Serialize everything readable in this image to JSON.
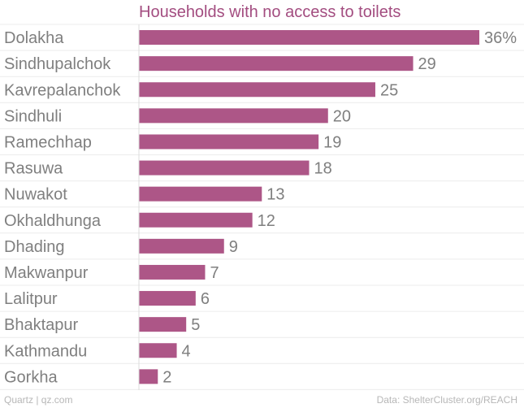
{
  "chart_data": {
    "type": "bar",
    "orientation": "horizontal",
    "title": "Households with no access to toilets",
    "categories": [
      "Dolakha",
      "Sindhupalchok",
      "Kavrepalanchok",
      "Sindhuli",
      "Ramechhap",
      "Rasuwa",
      "Nuwakot",
      "Okhaldhunga",
      "Dhading",
      "Makwanpur",
      "Lalitpur",
      "Bhaktapur",
      "Kathmandu",
      "Gorkha"
    ],
    "values": [
      36,
      29,
      25,
      20,
      19,
      18,
      13,
      12,
      9,
      7,
      6,
      5,
      4,
      2
    ],
    "value_labels": [
      "36%",
      "29",
      "25",
      "20",
      "19",
      "18",
      "13",
      "12",
      "9",
      "7",
      "6",
      "5",
      "4",
      "2"
    ],
    "xlim": [
      0,
      36
    ],
    "grid": true,
    "legend": "none"
  },
  "colors": {
    "bar": "#ad5687",
    "title": "#a34d80",
    "label": "#7f7f7f",
    "grid": "#ececec",
    "footer": "#b7b7b7"
  },
  "footer": {
    "credit": "Quartz | qz.com",
    "source": "Data: ShelterCluster.org/REACH"
  }
}
